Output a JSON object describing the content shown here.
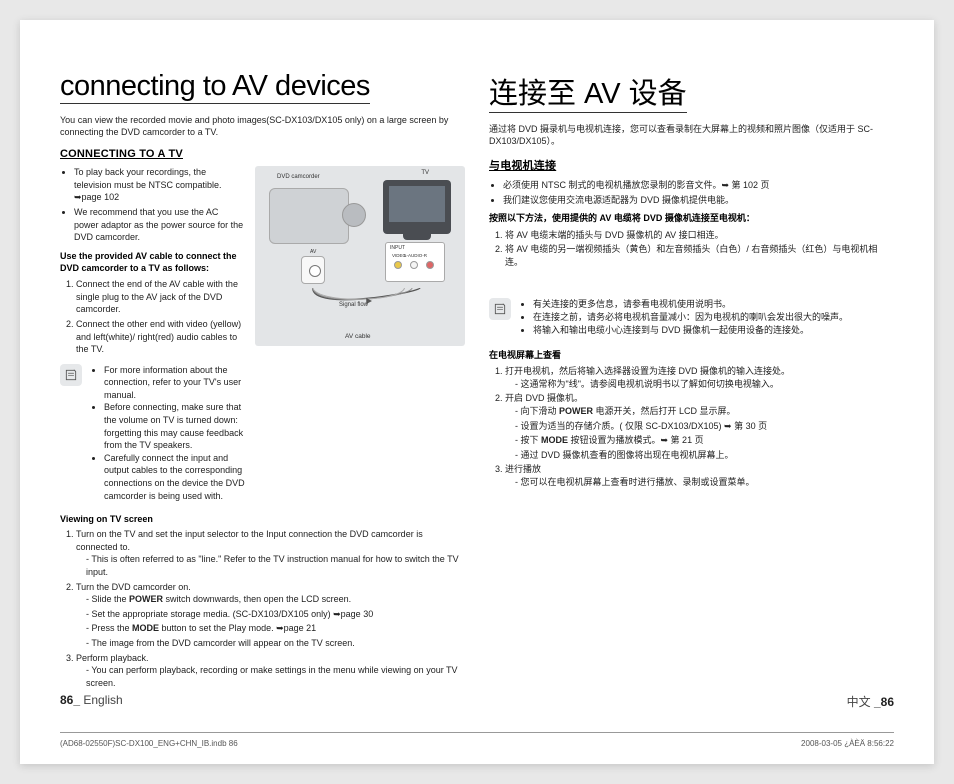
{
  "en": {
    "title": "connecting to AV devices",
    "intro": "You can view the recorded movie and photo images(SC-DX103/DX105 only) on a large screen by connecting the DVD camcorder to a TV.",
    "subhead": "CONNECTING TO A TV",
    "pre_bullets": [
      "To play back your recordings, the television must be NTSC compatible. ➥page 102",
      "We recommend that you use the AC power adaptor as the power source for the DVD camcorder."
    ],
    "bold_use": "Use the provided AV cable to connect the DVD camcorder to a TV as follows:",
    "steps_connect": [
      "Connect the end of the AV cable with the single plug to the AV jack of the DVD camcorder.",
      "Connect the other end with video (yellow) and left(white)/ right(red) audio cables to the TV."
    ],
    "note_items": [
      "For more information about the connection, refer to your TV's user manual.",
      "Before connecting, make sure that the volume on TV is turned down: forgetting this may cause feedback from the TV speakers.",
      "Carefully connect the input and output cables to the corresponding connections on the device the DVD camcorder is being used with."
    ],
    "viewing_head": "Viewing on TV screen",
    "viewing_num": [
      {
        "t": "Turn on the TV and set the input selector to the Input connection the DVD camcorder is connected to.",
        "sub": [
          "This is often referred to as \"line.\" Refer to the TV instruction manual for how to switch the TV input."
        ]
      },
      {
        "t": "Turn the DVD camcorder on.",
        "sub": [
          "Slide the <b>POWER</b> switch downwards, then open the LCD screen.",
          "Set the appropriate storage media. (SC-DX103/DX105 only) ➥page 30",
          "Press the <b>MODE</b> button to set the Play mode. ➥page 21",
          "The image from the DVD camcorder will appear on the TV screen."
        ]
      },
      {
        "t": "Perform playback.",
        "sub": [
          "You can perform playback, recording or make settings in the menu while viewing on your TV screen."
        ]
      }
    ],
    "footer_label": "English",
    "page": "86_"
  },
  "cn": {
    "title": "连接至 AV 设备",
    "intro": "通过将 DVD 摄录机与电视机连接，您可以查看录制在大屏幕上的视频和照片图像（仅适用于 SC-DX103/DX105）。",
    "subhead": "与电视机连接",
    "pre_bullets": [
      "必须使用 NTSC 制式的电视机播放您录制的影音文件。➥ 第 102 页",
      "我们建议您使用交流电源适配器为 DVD 摄像机提供电能。"
    ],
    "bold_use": "按照以下方法，使用提供的 AV 电缆将 DVD 摄像机连接至电视机：",
    "steps_connect": [
      "将 AV 电缆末端的插头与 DVD 摄像机的 AV 接口相连。",
      "将 AV 电缆的另一端视频插头（黄色）和左音频插头（白色）/ 右音频插头（红色）与电视机相连。"
    ],
    "note_items": [
      "有关连接的更多信息，请参看电视机使用说明书。",
      "在连接之前，请务必将电视机音量减小：因为电视机的喇叭会发出很大的噪声。",
      "将输入和输出电缆小心连接到与 DVD 摄像机一起使用设备的连接处。"
    ],
    "viewing_head": "在电视屏幕上查看",
    "viewing_num": [
      {
        "t": "打开电视机，然后将输入选择器设置为连接 DVD 摄像机的输入连接处。",
        "sub": [
          "这通常称为\"线\"。请参阅电视机说明书以了解如何切换电视输入。"
        ]
      },
      {
        "t": "开启 DVD 摄像机。",
        "sub": [
          "向下滑动 <b>POWER</b> 电源开关，然后打开 LCD 显示屏。",
          "设置为适当的存储介质。( 仅限 SC-DX103/DX105) ➥ 第 30 页",
          "按下 <b>MODE</b> 按钮设置为播放模式。➥ 第 21 页",
          "通过 DVD 摄像机查看的图像将出现在电视机屏幕上。"
        ]
      },
      {
        "t": "进行播放",
        "sub": [
          "您可以在电视机屏幕上查看时进行播放、录制或设置菜单。"
        ]
      }
    ],
    "footer_label": "中文",
    "page": "_86"
  },
  "diagram": {
    "dvd_label": "DVD camcorder",
    "tv_label": "TV",
    "input_label": "INPUT",
    "video_label": "VIDEO",
    "audio_l": "L-AUDIO-R",
    "av_label": "AV",
    "signal_flow": "Signal flow",
    "av_cable": "AV cable",
    "bg_color": "#e3e5e7"
  },
  "footprint": {
    "left": "(AD68-02550F)SC-DX100_ENG+CHN_IB.indb   86",
    "right": "2008-03-05   ¿ÀÈÄ 8:56:22"
  }
}
